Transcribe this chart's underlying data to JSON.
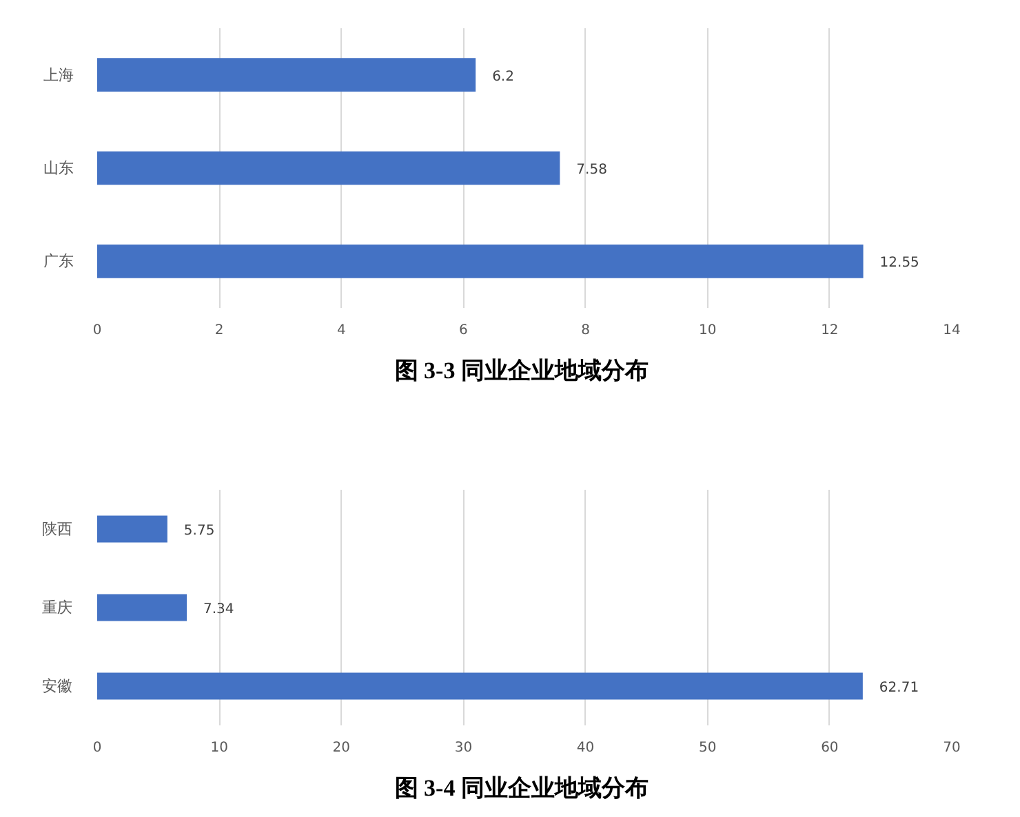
{
  "chart_data": [
    {
      "type": "bar",
      "orientation": "horizontal",
      "title": "图 3-3  同业企业地域分布",
      "categories": [
        "上海",
        "山东",
        "广东"
      ],
      "values": [
        6.2,
        7.58,
        12.55
      ],
      "color": "#4472c4",
      "xlim": [
        0,
        14
      ],
      "xticks": [
        0,
        2,
        4,
        6,
        8,
        10,
        12,
        14
      ],
      "grid": "x",
      "data_labels": true
    },
    {
      "type": "bar",
      "orientation": "horizontal",
      "title": "图 3-4  同业企业地域分布",
      "categories": [
        "陕西",
        "重庆",
        "安徽"
      ],
      "values": [
        5.75,
        7.34,
        62.71
      ],
      "color": "#4472c4",
      "xlim": [
        0,
        70
      ],
      "xticks": [
        0,
        10,
        20,
        30,
        40,
        50,
        60,
        70
      ],
      "grid": "x",
      "data_labels": true
    }
  ]
}
